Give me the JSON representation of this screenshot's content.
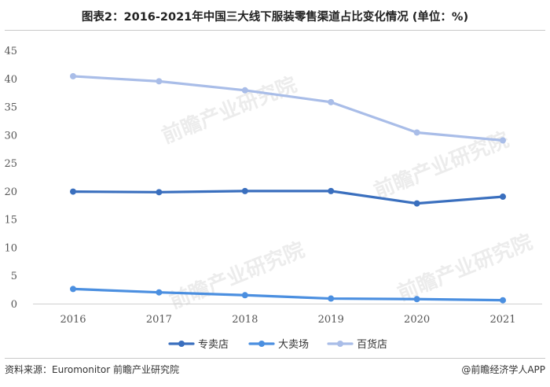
{
  "title": "图表2：2016-2021年中国三大线下服装零售渠道占比变化情况 (单位：%)",
  "footer": {
    "source": "资料来源：Euromonitor 前瞻产业研究院",
    "brand": "@前瞻经济学人APP"
  },
  "watermark": "前瞻产业研究院",
  "chart_data": {
    "type": "line",
    "x": [
      "2016",
      "2017",
      "2018",
      "2019",
      "2020",
      "2021"
    ],
    "ylim": [
      0,
      45
    ],
    "yticks": [
      0,
      5,
      10,
      15,
      20,
      25,
      30,
      35,
      40,
      45
    ],
    "grid": false,
    "legend_position": "bottom",
    "series": [
      {
        "name": "专卖店",
        "color": "#3a6fbe",
        "values": [
          19.9,
          19.8,
          20.0,
          20.0,
          17.8,
          19.0
        ]
      },
      {
        "name": "大卖场",
        "color": "#4b8fe0",
        "values": [
          2.6,
          2.0,
          1.5,
          0.9,
          0.8,
          0.6
        ]
      },
      {
        "name": "百货店",
        "color": "#a9bde8",
        "values": [
          40.4,
          39.5,
          37.9,
          35.8,
          30.4,
          29.0
        ]
      }
    ]
  }
}
